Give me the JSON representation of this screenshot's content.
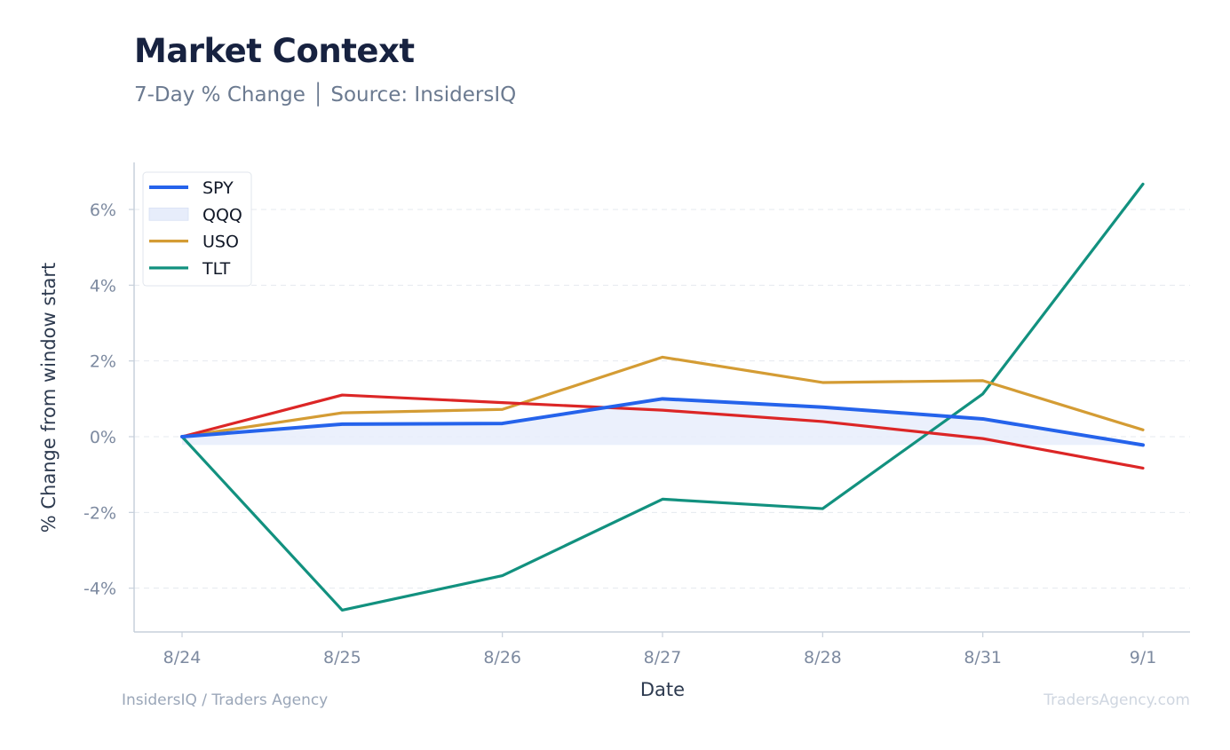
{
  "header": {
    "title": "Market Context",
    "subtitle": "7-Day % Change │ Source: InsidersIQ"
  },
  "footer": {
    "left": "InsidersIQ / Traders Agency",
    "right": "TradersAgency.com"
  },
  "colors": {
    "SPY": "#2563eb",
    "QQQ": "#dc2626",
    "QQQ_legend_fill": "#e7edfb",
    "USO": "#d49c34",
    "TLT": "#12917f",
    "grid": "#e5e9ef",
    "axis": "#c7d0db"
  },
  "chart_data": {
    "type": "line",
    "title": "",
    "xlabel": "Date",
    "ylabel": "% Change from window start",
    "categories": [
      "8/24",
      "8/25",
      "8/26",
      "8/27",
      "8/28",
      "8/31",
      "9/1"
    ],
    "ylim": [
      -5,
      7.2
    ],
    "yticks": [
      -4,
      -2,
      0,
      2,
      4,
      6
    ],
    "ytick_labels": [
      "-4%",
      "-2%",
      "0%",
      "2%",
      "4%",
      "6%"
    ],
    "grid": "horizontal dashed",
    "legend_position": "top-left",
    "legend": [
      "SPY",
      "QQQ",
      "USO",
      "TLT"
    ],
    "series": [
      {
        "name": "SPY",
        "values": [
          0.0,
          0.33,
          0.35,
          1.0,
          0.78,
          0.47,
          -0.22
        ]
      },
      {
        "name": "QQQ",
        "values": [
          0.0,
          1.1,
          0.9,
          0.7,
          0.4,
          -0.05,
          -0.83
        ]
      },
      {
        "name": "USO",
        "values": [
          0.0,
          0.63,
          0.72,
          2.1,
          1.43,
          1.48,
          0.18
        ]
      },
      {
        "name": "TLT",
        "values": [
          0.0,
          -4.58,
          -3.67,
          -1.65,
          -1.9,
          1.13,
          6.67
        ]
      }
    ]
  }
}
